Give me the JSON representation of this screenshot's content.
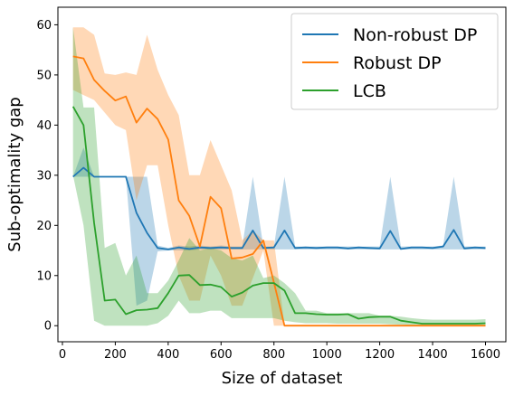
{
  "chart_data": {
    "type": "line",
    "xlabel": "Size of dataset",
    "ylabel": "Sub-optimality gap",
    "xlim": [
      -17,
      1677
    ],
    "ylim": [
      -3.2,
      63.5
    ],
    "xticks": [
      0,
      200,
      400,
      600,
      800,
      1000,
      1200,
      1400,
      1600
    ],
    "yticks": [
      0,
      10,
      20,
      30,
      40,
      50,
      60
    ],
    "grid": false,
    "legend_position": "top-right",
    "series": [
      {
        "name": "Non-robust DP",
        "color": "#1f77b4",
        "band_color": "#1f77b4",
        "band_opacity": 0.3,
        "x": [
          40,
          80,
          120,
          160,
          200,
          240,
          280,
          320,
          360,
          400,
          440,
          480,
          520,
          560,
          600,
          640,
          680,
          720,
          760,
          800,
          840,
          880,
          920,
          960,
          1000,
          1040,
          1080,
          1120,
          1160,
          1200,
          1240,
          1280,
          1320,
          1360,
          1400,
          1440,
          1480,
          1520,
          1560,
          1600
        ],
        "values": [
          29.7,
          31.5,
          29.7,
          29.7,
          29.7,
          29.7,
          22.5,
          18.5,
          15.5,
          15.2,
          15.6,
          15.3,
          15.6,
          15.5,
          15.6,
          15.5,
          15.5,
          19.0,
          15.5,
          15.6,
          19.0,
          15.5,
          15.6,
          15.5,
          15.6,
          15.6,
          15.4,
          15.6,
          15.5,
          15.4,
          18.9,
          15.3,
          15.6,
          15.6,
          15.5,
          15.8,
          19.1,
          15.4,
          15.6,
          15.5
        ],
        "lower": [
          29.7,
          29.7,
          29.7,
          29.7,
          29.7,
          29.7,
          4.0,
          5.0,
          14.8,
          15.0,
          15.0,
          15.0,
          15.2,
          15.2,
          15.2,
          15.2,
          15.2,
          15.2,
          15.2,
          15.2,
          15.2,
          15.2,
          15.2,
          15.2,
          15.2,
          15.2,
          15.2,
          15.2,
          15.2,
          15.2,
          15.2,
          15.2,
          15.2,
          15.2,
          15.2,
          15.2,
          15.2,
          15.2,
          15.2,
          15.2
        ],
        "upper": [
          29.7,
          35.5,
          29.7,
          29.7,
          29.7,
          29.7,
          29.7,
          29.7,
          16.0,
          15.5,
          16.0,
          15.8,
          16.0,
          15.8,
          16.0,
          15.8,
          15.8,
          29.7,
          15.8,
          15.8,
          29.7,
          15.8,
          15.8,
          15.8,
          15.8,
          15.8,
          15.8,
          15.8,
          15.8,
          15.8,
          29.7,
          15.8,
          15.8,
          15.8,
          15.8,
          16.0,
          29.7,
          15.8,
          15.8,
          15.8
        ]
      },
      {
        "name": "Robust DP",
        "color": "#ff7f0e",
        "band_color": "#ff7f0e",
        "band_opacity": 0.3,
        "x": [
          40,
          80,
          120,
          160,
          200,
          240,
          280,
          320,
          360,
          400,
          440,
          480,
          520,
          560,
          600,
          640,
          680,
          720,
          760,
          800,
          840,
          880,
          920,
          960,
          1000,
          1040,
          1080,
          1120,
          1160,
          1200,
          1240,
          1280,
          1320,
          1360,
          1400,
          1440,
          1480,
          1520,
          1560,
          1600
        ],
        "values": [
          53.7,
          53.3,
          49.0,
          46.8,
          44.9,
          45.7,
          40.5,
          43.3,
          41.2,
          37.1,
          25.0,
          21.9,
          15.8,
          25.7,
          23.4,
          13.4,
          13.6,
          14.3,
          17.0,
          8.6,
          0,
          0,
          0,
          0,
          0,
          0,
          0,
          0,
          0,
          0,
          0,
          0,
          0,
          0,
          0,
          0,
          0,
          0,
          0,
          0
        ],
        "lower": [
          47.0,
          46.0,
          45.0,
          42.5,
          40.0,
          39.0,
          25.0,
          32.0,
          32.0,
          20.0,
          10.0,
          5.0,
          5.0,
          14.0,
          10.0,
          4.0,
          4.0,
          9.5,
          15.0,
          0,
          0,
          0,
          0,
          0,
          0,
          0,
          0,
          0,
          0,
          0,
          0,
          0,
          0,
          0,
          0,
          0,
          0,
          0,
          0,
          0
        ],
        "upper": [
          59.5,
          59.5,
          58.0,
          50.3,
          50.0,
          50.5,
          50.0,
          58.0,
          51.0,
          46.0,
          42.0,
          30.0,
          30.0,
          37.0,
          32.0,
          27.0,
          17.0,
          19.0,
          17.0,
          17.0,
          0,
          0,
          0,
          0,
          0,
          0,
          0,
          0,
          0,
          0,
          0,
          0,
          0,
          0,
          0,
          0,
          0,
          0,
          0,
          0
        ]
      },
      {
        "name": "LCB",
        "color": "#2ca02c",
        "band_color": "#2ca02c",
        "band_opacity": 0.3,
        "x": [
          40,
          80,
          120,
          160,
          200,
          240,
          280,
          320,
          360,
          400,
          440,
          480,
          520,
          560,
          600,
          640,
          680,
          720,
          760,
          800,
          840,
          880,
          920,
          960,
          1000,
          1040,
          1080,
          1120,
          1160,
          1200,
          1240,
          1280,
          1320,
          1360,
          1400,
          1440,
          1480,
          1520,
          1560,
          1600
        ],
        "values": [
          43.7,
          40.0,
          20.5,
          5.0,
          5.2,
          2.3,
          3.1,
          3.2,
          3.5,
          6.5,
          10.0,
          10.1,
          8.1,
          8.2,
          7.7,
          5.8,
          6.6,
          8.0,
          8.5,
          8.5,
          7.0,
          2.5,
          2.5,
          2.3,
          2.2,
          2.2,
          2.3,
          1.4,
          1.7,
          1.8,
          1.8,
          1.0,
          0.7,
          0.4,
          0.4,
          0.4,
          0.4,
          0.4,
          0.4,
          0.5
        ],
        "lower": [
          30.0,
          20.0,
          1.0,
          0.0,
          0.0,
          0.0,
          0.0,
          0.0,
          0.5,
          2.0,
          5.0,
          2.5,
          2.5,
          3.0,
          3.0,
          1.5,
          1.5,
          1.5,
          1.5,
          1.5,
          1.0,
          0.7,
          0.5,
          0.5,
          0.5,
          0.4,
          0.4,
          0.4,
          0.4,
          0.4,
          0.3,
          0.2,
          0.1,
          0.0,
          0.0,
          0.0,
          0.0,
          0.0,
          0.0,
          0.0
        ],
        "upper": [
          59.5,
          43.5,
          43.5,
          15.5,
          16.5,
          10.0,
          14.0,
          6.5,
          6.5,
          9.0,
          13.0,
          17.5,
          15.0,
          15.5,
          15.0,
          13.5,
          13.0,
          14.0,
          9.5,
          10.0,
          8.5,
          6.5,
          3.0,
          3.0,
          2.5,
          2.5,
          2.5,
          2.5,
          2.5,
          2.0,
          2.0,
          1.8,
          1.5,
          1.3,
          1.2,
          1.2,
          1.2,
          1.2,
          1.2,
          1.3
        ]
      }
    ]
  }
}
